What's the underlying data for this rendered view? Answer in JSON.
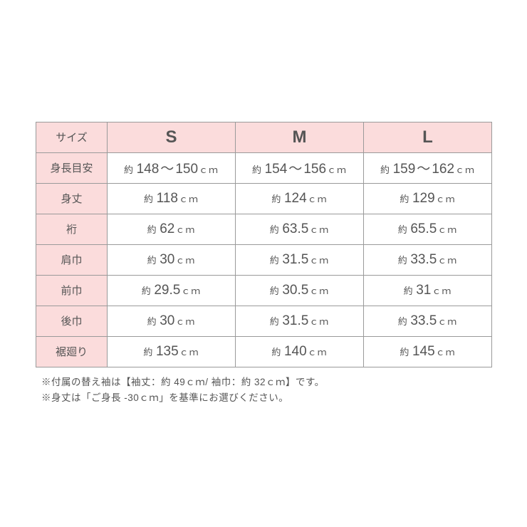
{
  "table": {
    "header_label": "サイズ",
    "sizes": [
      "S",
      "M",
      "L"
    ],
    "rows": [
      {
        "label": "身長目安",
        "type": "range",
        "values": [
          [
            "148",
            "150"
          ],
          [
            "154",
            "156"
          ],
          [
            "159",
            "162"
          ]
        ]
      },
      {
        "label": "身丈",
        "type": "single",
        "values": [
          "118",
          "124",
          "129"
        ]
      },
      {
        "label": "裄",
        "type": "single",
        "values": [
          "62",
          "63.5",
          "65.5"
        ]
      },
      {
        "label": "肩巾",
        "type": "single",
        "values": [
          "30",
          "31.5",
          "33.5"
        ]
      },
      {
        "label": "前巾",
        "type": "single",
        "values": [
          "29.5",
          "30.5",
          "31"
        ]
      },
      {
        "label": "後巾",
        "type": "single",
        "values": [
          "30",
          "31.5",
          "33.5"
        ]
      },
      {
        "label": "裾廻り",
        "type": "single",
        "values": [
          "135",
          "140",
          "145"
        ]
      }
    ],
    "prefix": "約",
    "range_sep": "～",
    "unit": "ｃｍ",
    "colors": {
      "header_bg": "#fbdcdc",
      "border": "#9a9a9a",
      "text": "#555555"
    }
  },
  "notes": [
    "※付属の替え袖は【袖丈：約 49ｃｍ/ 袖巾：約 32ｃｍ】です。",
    "※身丈は「ご身長 -30ｃｍ」を基準にお選びください。"
  ]
}
